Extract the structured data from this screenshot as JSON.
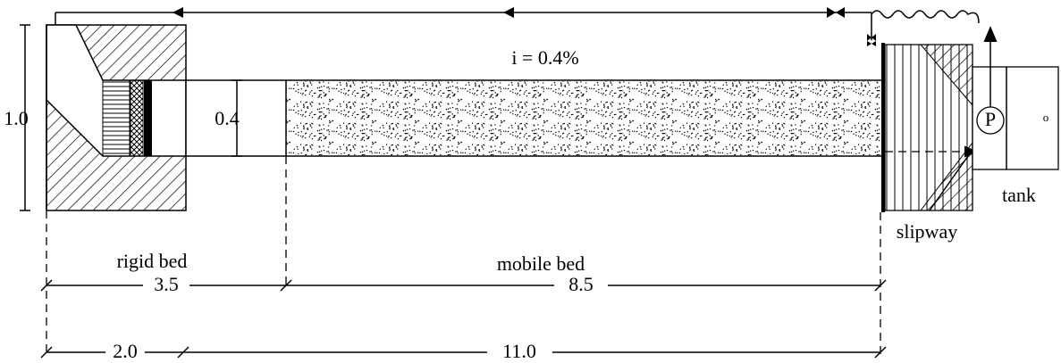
{
  "labels": {
    "slope": "i = 0.4%",
    "height": "1.0",
    "depth": "0.4",
    "rigid_bed": "rigid bed",
    "mobile_bed": "mobile bed",
    "len_rigid": "3.5",
    "len_mobile": "8.5",
    "len_inlet": "2.0",
    "len_total": "11.0",
    "slipway": "slipway",
    "tank": "tank",
    "pump": "P",
    "outlet": "o"
  }
}
